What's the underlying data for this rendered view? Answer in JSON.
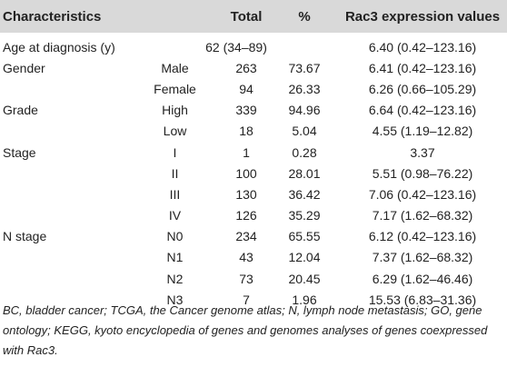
{
  "header": {
    "characteristics": "Characteristics",
    "total": "Total",
    "percent": "%",
    "rac3": "Rac3 expression values"
  },
  "rows": [
    {
      "characteristic": "Age at diagnosis (y)",
      "sub": "",
      "total": "62 (34–89)",
      "percent": "",
      "rac3": "6.40 (0.42–123.16)"
    },
    {
      "characteristic": "Gender",
      "sub": "Male",
      "total": "263",
      "percent": "73.67",
      "rac3": "6.41 (0.42–123.16)"
    },
    {
      "characteristic": "",
      "sub": "Female",
      "total": "94",
      "percent": "26.33",
      "rac3": "6.26 (0.66–105.29)"
    },
    {
      "characteristic": "Grade",
      "sub": "High",
      "total": "339",
      "percent": "94.96",
      "rac3": "6.64 (0.42–123.16)"
    },
    {
      "characteristic": "",
      "sub": "Low",
      "total": "18",
      "percent": "5.04",
      "rac3": "4.55 (1.19–12.82)"
    },
    {
      "characteristic": "Stage",
      "sub": "I",
      "total": "1",
      "percent": "0.28",
      "rac3": "3.37"
    },
    {
      "characteristic": "",
      "sub": "II",
      "total": "100",
      "percent": "28.01",
      "rac3": "5.51 (0.98–76.22)"
    },
    {
      "characteristic": "",
      "sub": "III",
      "total": "130",
      "percent": "36.42",
      "rac3": "7.06 (0.42–123.16)"
    },
    {
      "characteristic": "",
      "sub": "IV",
      "total": "126",
      "percent": "35.29",
      "rac3": "7.17 (1.62–68.32)"
    },
    {
      "characteristic": "N stage",
      "sub": "N0",
      "total": "234",
      "percent": "65.55",
      "rac3": "6.12 (0.42–123.16)"
    },
    {
      "characteristic": "",
      "sub": "N1",
      "total": "43",
      "percent": "12.04",
      "rac3": "7.37 (1.62–68.32)"
    },
    {
      "characteristic": "",
      "sub": "N2",
      "total": "73",
      "percent": "20.45",
      "rac3": "6.29 (1.62–46.46)"
    },
    {
      "characteristic": "",
      "sub": "N3",
      "total": "7",
      "percent": "1.96",
      "rac3": "15.53 (6.83–31.36)"
    }
  ],
  "footnote": "BC, bladder cancer; TCGA, the Cancer genome atlas; N, lymph node metastasis; GO, gene ontology; KEGG, kyoto encyclopedia of genes and genomes analyses of genes coexpressed with Rac3."
}
